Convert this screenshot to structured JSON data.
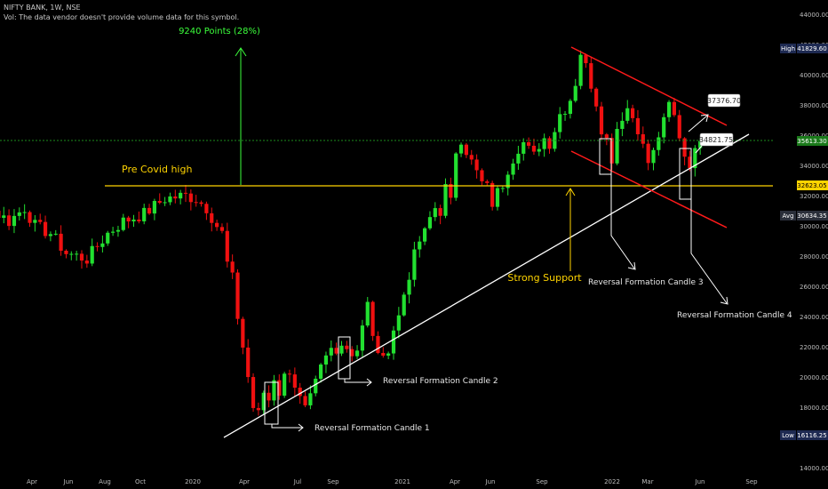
{
  "header": {
    "symbol_line": "NIFTY BANK, 1W, NSE",
    "volume_note": "Vol: The data vendor doesn't provide volume data for this symbol."
  },
  "colors": {
    "up": "#22e030",
    "down": "#f01010",
    "support_line": "#ffd400",
    "channel": "#ff1a1a",
    "trendline": "#ffffff",
    "price_line": "#1c8c1c",
    "points_text": "#3cff3c",
    "support_text": "#ffd400"
  },
  "chart_data": {
    "type": "candlestick",
    "y_range": [
      14000,
      44000
    ],
    "y_ticks": [
      "14000.00",
      "16000.00",
      "18000.00",
      "20000.00",
      "22000.00",
      "24000.00",
      "26000.00",
      "28000.00",
      "30000.00",
      "32000.00",
      "34000.00",
      "36000.00",
      "38000.00",
      "40000.00",
      "42000.00",
      "44000.00"
    ],
    "x_ticks": [
      "Apr",
      "Jun",
      "Aug",
      "Oct",
      "2020",
      "Apr",
      "Jul",
      "Sep",
      "2021",
      "Apr",
      "Jun",
      "Sep",
      "2022",
      "Mar",
      "Jun",
      "Sep"
    ],
    "price_labels": {
      "high_tag": "High",
      "high_value": "41829.60",
      "current_value": "35613.30",
      "support_value": "32623.05",
      "avg_tag": "Avg",
      "avg_value": "30634.35",
      "low_tag": "Low",
      "low_value": "16116.25"
    },
    "callouts": {
      "upper": "37376.70",
      "lower": "34821.75"
    },
    "annotations": {
      "points_move": "9240 Points (28%)",
      "pre_covid": "Pre Covid high",
      "strong_support": "Strong Support",
      "candle1": "Reversal Formation Candle 1",
      "candle2": "Reversal Formation Candle 2",
      "candle3": "Reversal Formation Candle 3",
      "candle4": "Reversal Formation Candle 4"
    },
    "anchors": [
      [
        -51,
        28500
      ],
      [
        -47,
        29000
      ],
      [
        -44,
        30500
      ],
      [
        -40,
        30200
      ],
      [
        -37,
        31000
      ],
      [
        -34,
        30300
      ],
      [
        -31,
        31200
      ],
      [
        -29,
        30000
      ],
      [
        -26,
        29500
      ],
      [
        -23,
        28200
      ],
      [
        -19,
        27800
      ],
      [
        -15,
        29500
      ],
      [
        -12,
        30300
      ],
      [
        -8,
        30800
      ],
      [
        -4,
        31800
      ],
      [
        0,
        32000
      ],
      [
        2,
        31800
      ],
      [
        4,
        31200
      ],
      [
        6,
        30000
      ],
      [
        7,
        29500
      ],
      [
        8,
        27500
      ],
      [
        9,
        26500
      ],
      [
        10,
        24000
      ],
      [
        11,
        22000
      ],
      [
        12,
        20000
      ],
      [
        13,
        18000
      ],
      [
        14,
        17500
      ],
      [
        15,
        19000
      ],
      [
        16,
        18500
      ],
      [
        17,
        20000
      ],
      [
        18,
        19000
      ],
      [
        19,
        20000
      ],
      [
        20,
        20500
      ],
      [
        21,
        19500
      ],
      [
        22,
        18500
      ],
      [
        23,
        17800
      ],
      [
        24,
        18500
      ],
      [
        25,
        19500
      ],
      [
        26,
        20500
      ],
      [
        27,
        21200
      ],
      [
        28,
        21800
      ],
      [
        29,
        21500
      ],
      [
        30,
        22500
      ],
      [
        31,
        22000
      ],
      [
        32,
        21500
      ],
      [
        33,
        22000
      ],
      [
        34,
        23500
      ],
      [
        35,
        24800
      ],
      [
        36,
        22500
      ],
      [
        37,
        21800
      ],
      [
        38,
        21000
      ],
      [
        39,
        22000
      ],
      [
        40,
        23200
      ],
      [
        41,
        24000
      ],
      [
        42,
        25500
      ],
      [
        43,
        26800
      ],
      [
        44,
        28000
      ],
      [
        45,
        29000
      ],
      [
        46,
        29500
      ],
      [
        47,
        30500
      ],
      [
        48,
        31200
      ],
      [
        49,
        31000
      ],
      [
        50,
        32500
      ],
      [
        51,
        31500
      ],
      [
        52,
        35000
      ],
      [
        53,
        35800
      ],
      [
        54,
        35000
      ],
      [
        55,
        34200
      ],
      [
        56,
        33500
      ],
      [
        57,
        32800
      ],
      [
        58,
        32500
      ],
      [
        59,
        31500
      ],
      [
        60,
        32200
      ],
      [
        61,
        32800
      ],
      [
        62,
        33800
      ],
      [
        63,
        34500
      ],
      [
        64,
        35200
      ],
      [
        65,
        35500
      ],
      [
        66,
        35000
      ],
      [
        67,
        34600
      ],
      [
        68,
        35400
      ],
      [
        69,
        35800
      ],
      [
        70,
        35500
      ],
      [
        71,
        36400
      ],
      [
        72,
        37400
      ],
      [
        73,
        37800
      ],
      [
        74,
        38400
      ],
      [
        75,
        39500
      ],
      [
        76,
        41500
      ],
      [
        77,
        40500
      ],
      [
        78,
        39400
      ],
      [
        79,
        38200
      ],
      [
        80,
        36500
      ],
      [
        81,
        35700
      ],
      [
        82,
        34500
      ],
      [
        83,
        36500
      ],
      [
        84,
        37300
      ],
      [
        85,
        37800
      ],
      [
        86,
        37200
      ],
      [
        87,
        36500
      ],
      [
        88,
        35200
      ],
      [
        89,
        34200
      ],
      [
        90,
        34800
      ],
      [
        91,
        36000
      ],
      [
        92,
        36800
      ],
      [
        93,
        38000
      ],
      [
        94,
        37200
      ],
      [
        95,
        36000
      ],
      [
        96,
        34700
      ],
      [
        97,
        34200
      ],
      [
        98,
        34800
      ],
      [
        99,
        35613
      ]
    ]
  }
}
